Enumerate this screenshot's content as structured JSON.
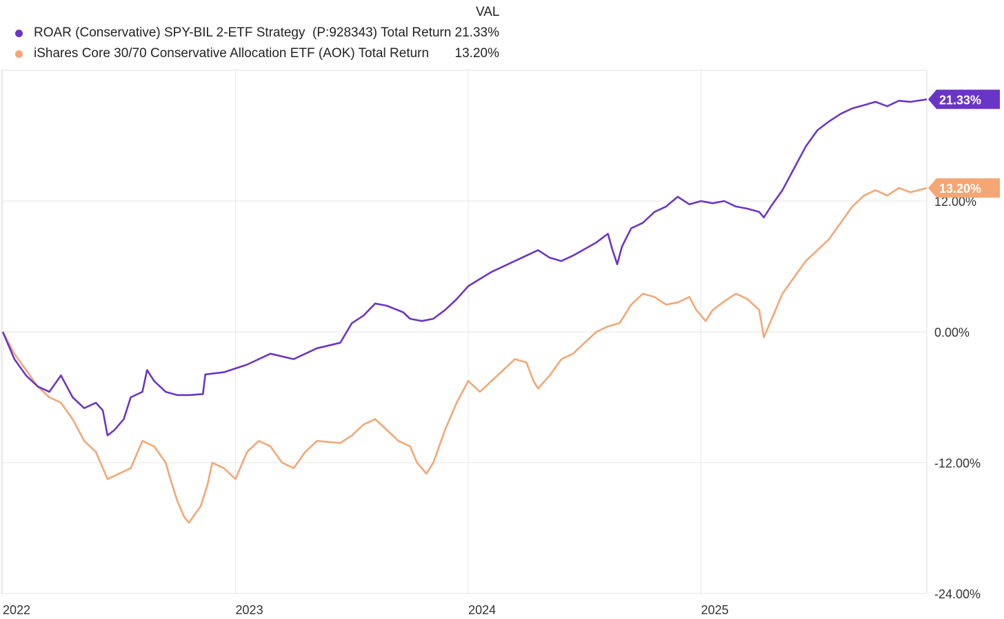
{
  "chart_data": {
    "type": "line",
    "title": "",
    "value_header": "VAL",
    "x_ticks": [
      "2022",
      "2023",
      "2024",
      "2025"
    ],
    "y_ticks": [
      "-24.00%",
      "-12.00%",
      "0.00%",
      "12.00%"
    ],
    "ylim": [
      -24,
      24
    ],
    "xlim": [
      2022.0,
      2025.97
    ],
    "grid": true,
    "legend_position": "top-left",
    "series": [
      {
        "name": "ROAR (Conservative) SPY-BIL 2-ETF Strategy  (P:928343) Total Return",
        "color": "#6a35c6",
        "end_label": "21.33%",
        "final_value": "21.33%",
        "points": [
          [
            2022.0,
            0.0
          ],
          [
            2022.05,
            -2.5
          ],
          [
            2022.1,
            -4.0
          ],
          [
            2022.15,
            -5.0
          ],
          [
            2022.2,
            -5.5
          ],
          [
            2022.25,
            -4.0
          ],
          [
            2022.3,
            -6.0
          ],
          [
            2022.35,
            -7.0
          ],
          [
            2022.4,
            -6.5
          ],
          [
            2022.43,
            -7.2
          ],
          [
            2022.45,
            -9.5
          ],
          [
            2022.48,
            -9.0
          ],
          [
            2022.52,
            -8.0
          ],
          [
            2022.55,
            -6.0
          ],
          [
            2022.6,
            -5.5
          ],
          [
            2022.62,
            -3.5
          ],
          [
            2022.65,
            -4.5
          ],
          [
            2022.7,
            -5.5
          ],
          [
            2022.75,
            -5.8
          ],
          [
            2022.8,
            -5.8
          ],
          [
            2022.86,
            -5.7
          ],
          [
            2022.87,
            -3.9
          ],
          [
            2022.95,
            -3.7
          ],
          [
            2023.05,
            -3.0
          ],
          [
            2023.15,
            -2.0
          ],
          [
            2023.25,
            -2.5
          ],
          [
            2023.35,
            -1.5
          ],
          [
            2023.45,
            -1.0
          ],
          [
            2023.5,
            0.8
          ],
          [
            2023.55,
            1.5
          ],
          [
            2023.6,
            2.6
          ],
          [
            2023.65,
            2.4
          ],
          [
            2023.72,
            1.8
          ],
          [
            2023.75,
            1.2
          ],
          [
            2023.8,
            1.0
          ],
          [
            2023.85,
            1.2
          ],
          [
            2023.9,
            2.0
          ],
          [
            2023.95,
            3.0
          ],
          [
            2024.0,
            4.2
          ],
          [
            2024.1,
            5.5
          ],
          [
            2024.2,
            6.5
          ],
          [
            2024.25,
            7.0
          ],
          [
            2024.3,
            7.5
          ],
          [
            2024.35,
            6.8
          ],
          [
            2024.4,
            6.5
          ],
          [
            2024.45,
            7.0
          ],
          [
            2024.5,
            7.6
          ],
          [
            2024.55,
            8.2
          ],
          [
            2024.6,
            9.0
          ],
          [
            2024.62,
            7.5
          ],
          [
            2024.64,
            6.2
          ],
          [
            2024.66,
            7.8
          ],
          [
            2024.7,
            9.5
          ],
          [
            2024.75,
            10.0
          ],
          [
            2024.8,
            11.0
          ],
          [
            2024.85,
            11.5
          ],
          [
            2024.9,
            12.4
          ],
          [
            2024.95,
            11.7
          ],
          [
            2025.0,
            12.0
          ],
          [
            2025.05,
            11.8
          ],
          [
            2025.1,
            12.0
          ],
          [
            2025.15,
            11.5
          ],
          [
            2025.2,
            11.3
          ],
          [
            2025.25,
            11.0
          ],
          [
            2025.27,
            10.5
          ],
          [
            2025.3,
            11.5
          ],
          [
            2025.35,
            13.0
          ],
          [
            2025.4,
            15.0
          ],
          [
            2025.45,
            17.0
          ],
          [
            2025.5,
            18.5
          ],
          [
            2025.55,
            19.3
          ],
          [
            2025.6,
            20.0
          ],
          [
            2025.65,
            20.5
          ],
          [
            2025.7,
            20.8
          ],
          [
            2025.75,
            21.1
          ],
          [
            2025.8,
            20.7
          ],
          [
            2025.85,
            21.2
          ],
          [
            2025.9,
            21.1
          ],
          [
            2025.97,
            21.33
          ]
        ]
      },
      {
        "name": "iShares Core 30/70 Conservative Allocation ETF (AOK) Total Return",
        "color": "#f4a674",
        "end_label": "13.20%",
        "final_value": "13.20%",
        "points": [
          [
            2022.0,
            0.0
          ],
          [
            2022.05,
            -2.0
          ],
          [
            2022.1,
            -3.5
          ],
          [
            2022.15,
            -5.0
          ],
          [
            2022.2,
            -6.0
          ],
          [
            2022.25,
            -6.5
          ],
          [
            2022.3,
            -8.0
          ],
          [
            2022.35,
            -10.0
          ],
          [
            2022.4,
            -11.0
          ],
          [
            2022.45,
            -13.5
          ],
          [
            2022.5,
            -13.0
          ],
          [
            2022.55,
            -12.5
          ],
          [
            2022.6,
            -10.0
          ],
          [
            2022.65,
            -10.5
          ],
          [
            2022.7,
            -12.0
          ],
          [
            2022.72,
            -13.5
          ],
          [
            2022.75,
            -15.5
          ],
          [
            2022.78,
            -17.0
          ],
          [
            2022.8,
            -17.5
          ],
          [
            2022.85,
            -16.0
          ],
          [
            2022.88,
            -14.0
          ],
          [
            2022.9,
            -12.0
          ],
          [
            2022.95,
            -12.5
          ],
          [
            2023.0,
            -13.5
          ],
          [
            2023.05,
            -11.0
          ],
          [
            2023.1,
            -10.0
          ],
          [
            2023.15,
            -10.5
          ],
          [
            2023.2,
            -12.0
          ],
          [
            2023.25,
            -12.5
          ],
          [
            2023.3,
            -11.0
          ],
          [
            2023.35,
            -10.0
          ],
          [
            2023.45,
            -10.2
          ],
          [
            2023.5,
            -9.5
          ],
          [
            2023.55,
            -8.5
          ],
          [
            2023.6,
            -8.0
          ],
          [
            2023.65,
            -9.0
          ],
          [
            2023.7,
            -10.0
          ],
          [
            2023.75,
            -10.5
          ],
          [
            2023.78,
            -12.0
          ],
          [
            2023.82,
            -13.0
          ],
          [
            2023.85,
            -12.0
          ],
          [
            2023.9,
            -9.0
          ],
          [
            2023.95,
            -6.5
          ],
          [
            2024.0,
            -4.5
          ],
          [
            2024.05,
            -5.5
          ],
          [
            2024.1,
            -4.5
          ],
          [
            2024.15,
            -3.5
          ],
          [
            2024.2,
            -2.5
          ],
          [
            2024.25,
            -2.8
          ],
          [
            2024.28,
            -4.5
          ],
          [
            2024.3,
            -5.2
          ],
          [
            2024.35,
            -4.0
          ],
          [
            2024.4,
            -2.5
          ],
          [
            2024.45,
            -2.0
          ],
          [
            2024.5,
            -1.0
          ],
          [
            2024.55,
            0.0
          ],
          [
            2024.6,
            0.5
          ],
          [
            2024.65,
            0.8
          ],
          [
            2024.7,
            2.5
          ],
          [
            2024.75,
            3.5
          ],
          [
            2024.8,
            3.2
          ],
          [
            2024.85,
            2.5
          ],
          [
            2024.9,
            2.7
          ],
          [
            2024.95,
            3.2
          ],
          [
            2024.98,
            2.0
          ],
          [
            2025.02,
            1.0
          ],
          [
            2025.05,
            2.0
          ],
          [
            2025.1,
            2.8
          ],
          [
            2025.15,
            3.5
          ],
          [
            2025.2,
            3.0
          ],
          [
            2025.25,
            2.0
          ],
          [
            2025.27,
            -0.5
          ],
          [
            2025.3,
            1.0
          ],
          [
            2025.35,
            3.5
          ],
          [
            2025.4,
            5.0
          ],
          [
            2025.45,
            6.5
          ],
          [
            2025.5,
            7.5
          ],
          [
            2025.55,
            8.5
          ],
          [
            2025.6,
            10.0
          ],
          [
            2025.65,
            11.5
          ],
          [
            2025.7,
            12.5
          ],
          [
            2025.75,
            13.0
          ],
          [
            2025.8,
            12.5
          ],
          [
            2025.85,
            13.2
          ],
          [
            2025.9,
            12.8
          ],
          [
            2025.97,
            13.2
          ]
        ]
      }
    ]
  }
}
